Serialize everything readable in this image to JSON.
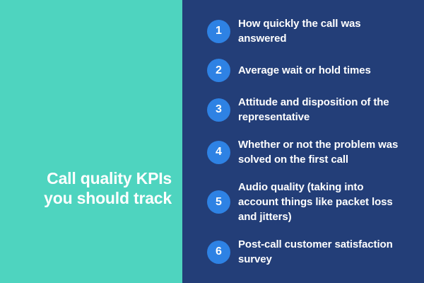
{
  "title": {
    "line1": "Call quality KPIs",
    "line2": "you should track"
  },
  "kpis": {
    "items": [
      {
        "number": "1",
        "text": "How quickly the call was answered",
        "lines": [
          "How quickly the call was",
          "answered"
        ]
      },
      {
        "number": "2",
        "text": "Average wait or hold times",
        "lines": [
          "Average wait or hold times"
        ]
      },
      {
        "number": "3",
        "text": "Attitude and disposition of the representative",
        "lines": [
          "Attitude and disposition of the",
          "representative"
        ]
      },
      {
        "number": "4",
        "text": "Whether or not the problem was solved on the first call",
        "lines": [
          "Whether or not the problem was",
          "solved on the first call"
        ]
      },
      {
        "number": "5",
        "text": "Audio quality (taking into account things like packet loss and jitters)",
        "lines": [
          "Audio quality (taking into",
          "account things like packet loss",
          "and jitters)"
        ]
      },
      {
        "number": "6",
        "text": "Post-call customer satisfaction survey",
        "lines": [
          "Post-call customer satisfaction",
          "survey"
        ]
      }
    ]
  },
  "colors": {
    "left_panel_teal": "#4ed4bf",
    "right_panel_navy": "#233e78",
    "badge_blue": "#2e82e4",
    "text_white": "#ffffff"
  }
}
